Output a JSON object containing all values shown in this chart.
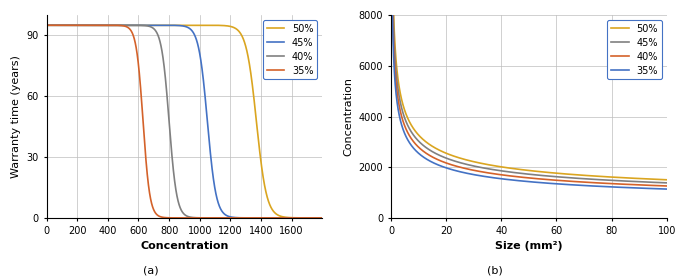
{
  "left": {
    "xlabel": "Concentration",
    "ylabel": "Warranty time (years)",
    "xlim": [
      0,
      1800
    ],
    "ylim": [
      0,
      100
    ],
    "xticks": [
      0,
      200,
      400,
      600,
      800,
      1000,
      1200,
      1400,
      1600
    ],
    "yticks": [
      0,
      30,
      60,
      90
    ],
    "label_a": "(a)",
    "curves": [
      {
        "label": "50%",
        "color": "#DAA520",
        "x0": 1370,
        "k": 0.03
      },
      {
        "label": "45%",
        "color": "#4472C4",
        "x0": 1050,
        "k": 0.035
      },
      {
        "label": "40%",
        "color": "#808080",
        "x0": 800,
        "k": 0.04
      },
      {
        "label": "35%",
        "color": "#D4622A",
        "x0": 630,
        "k": 0.045
      }
    ]
  },
  "right": {
    "xlabel": "Size (mm²)",
    "ylabel": "Concentration",
    "xlim": [
      0,
      100
    ],
    "ylim": [
      0,
      8000
    ],
    "xticks": [
      0,
      20,
      40,
      60,
      80,
      100
    ],
    "yticks": [
      0,
      2000,
      4000,
      6000,
      8000
    ],
    "label_b": "(b)",
    "curves": [
      {
        "label": "50%",
        "color": "#DAA520",
        "A": 7500,
        "alpha": 0.42,
        "C": 420
      },
      {
        "label": "45%",
        "color": "#808080",
        "A": 7000,
        "alpha": 0.42,
        "C": 370
      },
      {
        "label": "40%",
        "color": "#D4622A",
        "A": 6500,
        "alpha": 0.42,
        "C": 320
      },
      {
        "label": "35%",
        "color": "#4472C4",
        "A": 6000,
        "alpha": 0.42,
        "C": 270
      }
    ]
  }
}
